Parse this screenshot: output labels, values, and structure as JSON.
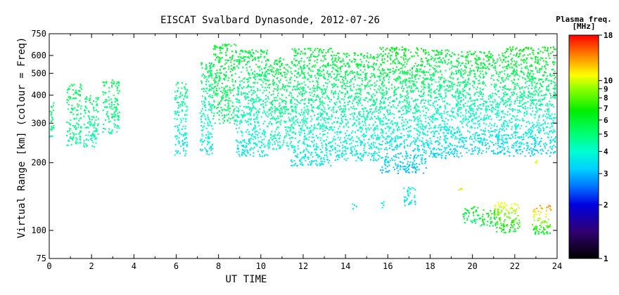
{
  "title": "EISCAT Svalbard Dynasonde, 2012-07-26",
  "chart_data": {
    "type": "scatter",
    "title": "EISCAT Svalbard Dynasonde, 2012-07-26",
    "xlabel": "UT TIME",
    "ylabel": "Virtual Range [km] (colour = Freq)",
    "xlim": [
      0,
      24
    ],
    "ylim": [
      75,
      750
    ],
    "yscale": "log",
    "x_ticks": [
      0,
      2,
      4,
      6,
      8,
      10,
      12,
      14,
      16,
      18,
      20,
      22,
      24
    ],
    "y_ticks": [
      75,
      100,
      200,
      300,
      400,
      500,
      600,
      750
    ],
    "colorbar": {
      "label": "Plasma freq.",
      "unit": "[MHz]",
      "scale": "log",
      "range": [
        1,
        18
      ],
      "ticks": [
        1,
        2,
        3,
        4,
        5,
        6,
        7,
        8,
        9,
        10,
        18
      ]
    },
    "series": [
      {
        "x": [
          0.0,
          0.2
        ],
        "y_range": [
          255,
          380
        ],
        "freq_mhz": [
          4.5,
          5.2
        ]
      },
      {
        "x": [
          0.8,
          1.5
        ],
        "y_range": [
          240,
          450
        ],
        "freq_mhz": [
          4.5,
          5.5
        ]
      },
      {
        "x": [
          1.6,
          2.3
        ],
        "y_range": [
          235,
          400
        ],
        "freq_mhz": [
          4.2,
          5.3
        ]
      },
      {
        "x": [
          2.5,
          3.3
        ],
        "y_range": [
          270,
          470
        ],
        "freq_mhz": [
          4.5,
          5.5
        ]
      },
      {
        "x": [
          5.9,
          6.5
        ],
        "y_range": [
          215,
          460
        ],
        "freq_mhz": [
          3.5,
          5.0
        ]
      },
      {
        "x": [
          7.1,
          7.7
        ],
        "y_range": [
          215,
          570
        ],
        "freq_mhz": [
          3.5,
          5.5
        ]
      },
      {
        "x": [
          7.7,
          8.8
        ],
        "y_range": [
          300,
          680
        ],
        "freq_mhz": [
          5.0,
          6.0
        ]
      },
      {
        "x": [
          8.8,
          10.3
        ],
        "y_range": [
          215,
          640
        ],
        "freq_mhz": [
          3.5,
          5.8
        ]
      },
      {
        "x": [
          10.3,
          11.4
        ],
        "y_range": [
          230,
          590
        ],
        "freq_mhz": [
          4.0,
          6.0
        ]
      },
      {
        "x": [
          11.4,
          13.5
        ],
        "y_range": [
          195,
          650
        ],
        "freq_mhz": [
          3.5,
          6.0
        ]
      },
      {
        "x": [
          13.5,
          15.6
        ],
        "y_range": [
          205,
          620
        ],
        "freq_mhz": [
          3.5,
          6.0
        ]
      },
      {
        "x": [
          15.6,
          17.8
        ],
        "y_range": [
          180,
          660
        ],
        "freq_mhz": [
          3.0,
          6.5
        ]
      },
      {
        "x": [
          17.8,
          19.5
        ],
        "y_range": [
          210,
          640
        ],
        "freq_mhz": [
          3.2,
          6.0
        ]
      },
      {
        "x": [
          19.5,
          21.5
        ],
        "y_range": [
          220,
          630
        ],
        "freq_mhz": [
          3.2,
          6.2
        ]
      },
      {
        "x": [
          21.5,
          23.9
        ],
        "y_range": [
          215,
          660
        ],
        "freq_mhz": [
          3.2,
          6.5
        ]
      },
      {
        "x": [
          14.3,
          14.5
        ],
        "y_range": [
          125,
          132
        ],
        "freq_mhz": [
          3.5,
          3.8
        ]
      },
      {
        "x": [
          15.6,
          15.8
        ],
        "y_range": [
          125,
          135
        ],
        "freq_mhz": [
          3.5,
          3.8
        ]
      },
      {
        "x": [
          16.7,
          17.3
        ],
        "y_range": [
          130,
          158
        ],
        "freq_mhz": [
          3.5,
          3.8
        ]
      },
      {
        "x": [
          19.3,
          19.5
        ],
        "y_range": [
          150,
          163
        ],
        "freq_mhz": [
          9.5,
          11
        ]
      },
      {
        "x": [
          19.5,
          20.3
        ],
        "y_range": [
          108,
          130
        ],
        "freq_mhz": [
          5.0,
          6.5
        ]
      },
      {
        "x": [
          20.3,
          21.2
        ],
        "y_range": [
          105,
          125
        ],
        "freq_mhz": [
          5.5,
          7.0
        ]
      },
      {
        "x": [
          21.0,
          22.2
        ],
        "y_range": [
          98,
          135
        ],
        "freq_mhz": [
          6.0,
          11
        ]
      },
      {
        "x": [
          22.8,
          23.7
        ],
        "y_range": [
          97,
          130
        ],
        "freq_mhz": [
          6.0,
          14
        ]
      },
      {
        "x": [
          22.95,
          23.05
        ],
        "y_range": [
          200,
          210
        ],
        "freq_mhz": [
          10,
          11
        ]
      }
    ]
  }
}
